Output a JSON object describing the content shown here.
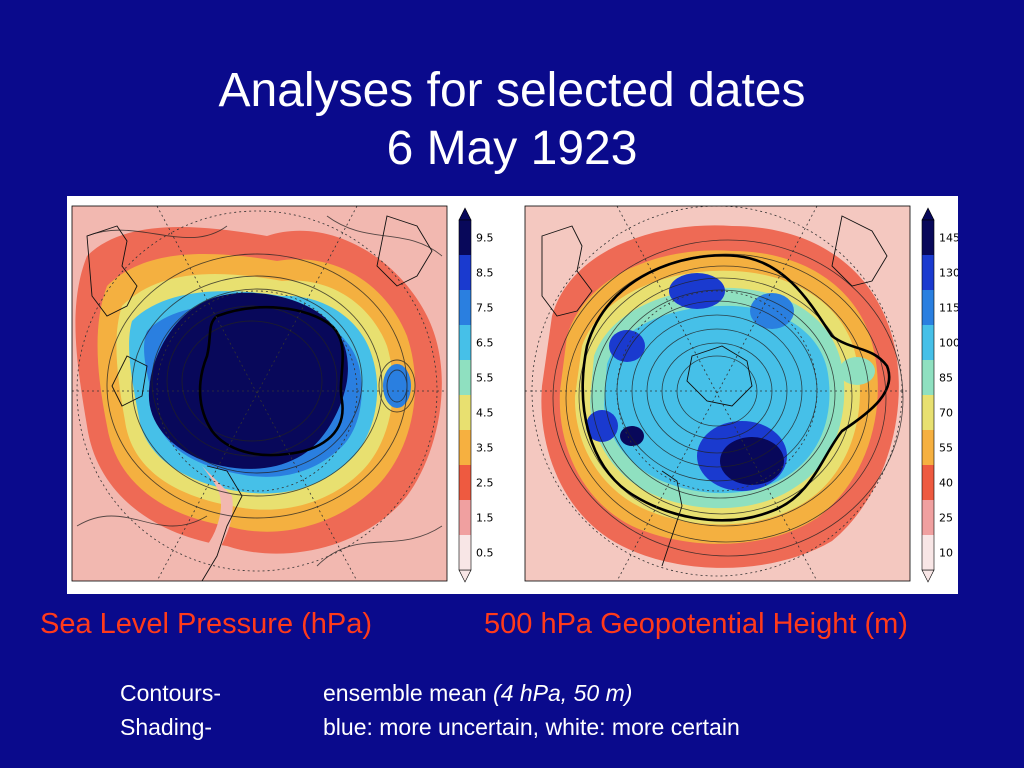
{
  "title": {
    "line1": "Analyses for selected dates",
    "line2": "6 May 1923"
  },
  "panels": [
    {
      "caption": "Sea Level Pressure (hPa)",
      "colorbar_ticks": [
        "9.5",
        "8.5",
        "7.5",
        "6.5",
        "5.5",
        "4.5",
        "3.5",
        "2.5",
        "1.5",
        "0.5"
      ]
    },
    {
      "caption": "500 hPa Geopotential Height (m)",
      "colorbar_ticks": [
        "145",
        "130",
        "115",
        "100",
        "85",
        "70",
        "55",
        "40",
        "25",
        "10"
      ]
    }
  ],
  "legend": {
    "contours_term": "Contours-",
    "contours_desc": "ensemble mean ",
    "contours_units": "(4 hPa, 50 m)",
    "shading_term": "Shading-",
    "shading_desc": "blue: more uncertain, white: more certain"
  },
  "colors": {
    "background": "#0a0a8c",
    "caption": "#ff3a1a",
    "text": "#ffffff"
  },
  "colorbar_colors": [
    "#08085a",
    "#1a3acf",
    "#2a7fe0",
    "#46c0e8",
    "#8fe0c0",
    "#e8e070",
    "#f6b040",
    "#ee5a40",
    "#f0a0a0",
    "#f8e6e6"
  ]
}
